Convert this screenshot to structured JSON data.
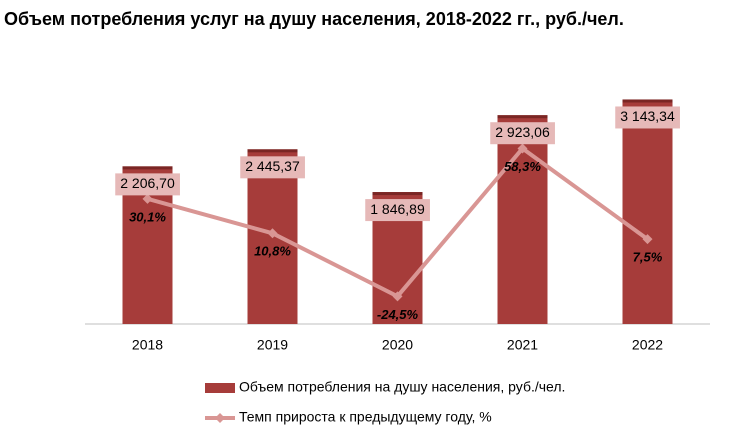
{
  "chart_data": {
    "type": "bar-line",
    "title": "Объем потребления услуг на душу населения, 2018-2022 гг., руб./чел.",
    "categories": [
      "2018",
      "2019",
      "2020",
      "2021",
      "2022"
    ],
    "ylim": [
      0,
      3500
    ],
    "y2lim": [
      -40,
      100
    ],
    "series": [
      {
        "name": "Объем потребления на душу населения, руб./чел.",
        "type": "bar",
        "color": "#a63c3a",
        "values": [
          2206.7,
          2445.37,
          1846.89,
          2923.06,
          3143.34
        ],
        "value_labels": [
          "2 206,70",
          "2 445,37",
          "1 846,89",
          "2 923,06",
          "3 143,34"
        ]
      },
      {
        "name": "Темп прироста к предыдущему году, %",
        "type": "line",
        "axis": "y2",
        "color": "#d99694",
        "values": [
          30.1,
          10.8,
          -24.5,
          58.3,
          7.5
        ],
        "value_labels": [
          "30,1%",
          "10,8%",
          "-24,5%",
          "58,3%",
          "7,5%"
        ]
      }
    ]
  }
}
